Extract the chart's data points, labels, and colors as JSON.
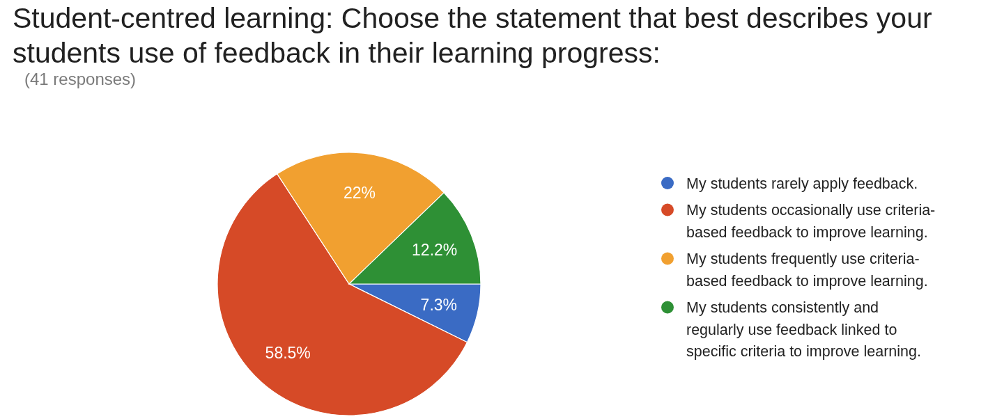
{
  "chart_data": {
    "type": "pie",
    "title": "Student-centred learning: Choose the statement that best describes your students use of feedback in their learning progress:",
    "subtitle": "(41 responses)",
    "categories": [
      "My students rarely apply feedback.",
      "My students occasionally use criteria-based feedback to improve learning.",
      "My students frequently use criteria-based feedback to improve learning.",
      "My students consistently and regularly use feedback linked to specific criteria to improve learning."
    ],
    "values": [
      7.3,
      58.5,
      22,
      12.2
    ],
    "colors": [
      "#3a6bc4",
      "#d64a27",
      "#f1a030",
      "#2e9035"
    ],
    "value_labels": [
      "7.3%",
      "58.5%",
      "22%",
      "12.2%"
    ],
    "legend": "right"
  }
}
